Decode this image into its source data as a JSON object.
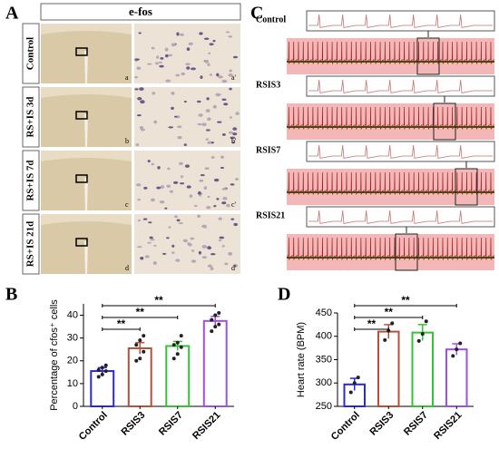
{
  "panel_labels": [
    "A",
    "B",
    "C",
    "D"
  ],
  "panel_a": {
    "header": "e-fos",
    "rows": [
      {
        "label": "Control",
        "left": "a",
        "right": "a'"
      },
      {
        "label": "RS+IS 3d",
        "left": "b",
        "right": "b'"
      },
      {
        "label": "RS+IS 7d",
        "left": "c",
        "right": "c'"
      },
      {
        "label": "RS+IS 21d",
        "left": "d",
        "right": "d'"
      }
    ]
  },
  "panel_c": {
    "rows": [
      "Control",
      "RSIS3",
      "RSIS7",
      "RSIS21"
    ]
  },
  "chart_data": [
    {
      "type": "bar",
      "y_label": "Percentage of cfos⁺ cells",
      "categories": [
        "Control",
        "RSIS3",
        "RSIS7",
        "RSIS21"
      ],
      "values": [
        15.5,
        25.5,
        26.5,
        37.5
      ],
      "errors": [
        1.5,
        2.5,
        2,
        2
      ],
      "points": [
        [
          13,
          14,
          15.5,
          16,
          17,
          18
        ],
        [
          20,
          21,
          24,
          27,
          29,
          31
        ],
        [
          21,
          23,
          26,
          27,
          28,
          31
        ],
        [
          33,
          35,
          36,
          38,
          40,
          41
        ]
      ],
      "colors": [
        "#2a2ad0",
        "#b5503a",
        "#33c433",
        "#a050e0"
      ],
      "ylim": [
        0,
        45
      ],
      "yticks": [
        0,
        10,
        20,
        30,
        40
      ],
      "significance": [
        {
          "from": "Control",
          "to": "RSIS3",
          "label": "**"
        },
        {
          "from": "Control",
          "to": "RSIS7",
          "label": "**"
        },
        {
          "from": "Control",
          "to": "RSIS21",
          "label": "**"
        }
      ]
    },
    {
      "type": "bar",
      "y_label": "Heart rate (BPM)",
      "categories": [
        "Control",
        "RSIS3",
        "RSIS7",
        "RSIS21"
      ],
      "values": [
        297,
        410,
        408,
        372
      ],
      "errors": [
        13,
        15,
        17,
        12
      ],
      "points": [
        [
          280,
          300,
          312
        ],
        [
          392,
          412,
          428
        ],
        [
          390,
          405,
          432
        ],
        [
          358,
          372,
          385
        ]
      ],
      "colors": [
        "#2a2ad0",
        "#b5503a",
        "#33c433",
        "#a050e0"
      ],
      "ylim": [
        250,
        450
      ],
      "yticks": [
        250,
        300,
        350,
        400,
        450
      ],
      "significance": [
        {
          "from": "Control",
          "to": "RSIS3",
          "label": "**"
        },
        {
          "from": "Control",
          "to": "RSIS7",
          "label": "**"
        },
        {
          "from": "Control",
          "to": "RSIS21",
          "label": "**"
        }
      ]
    }
  ]
}
